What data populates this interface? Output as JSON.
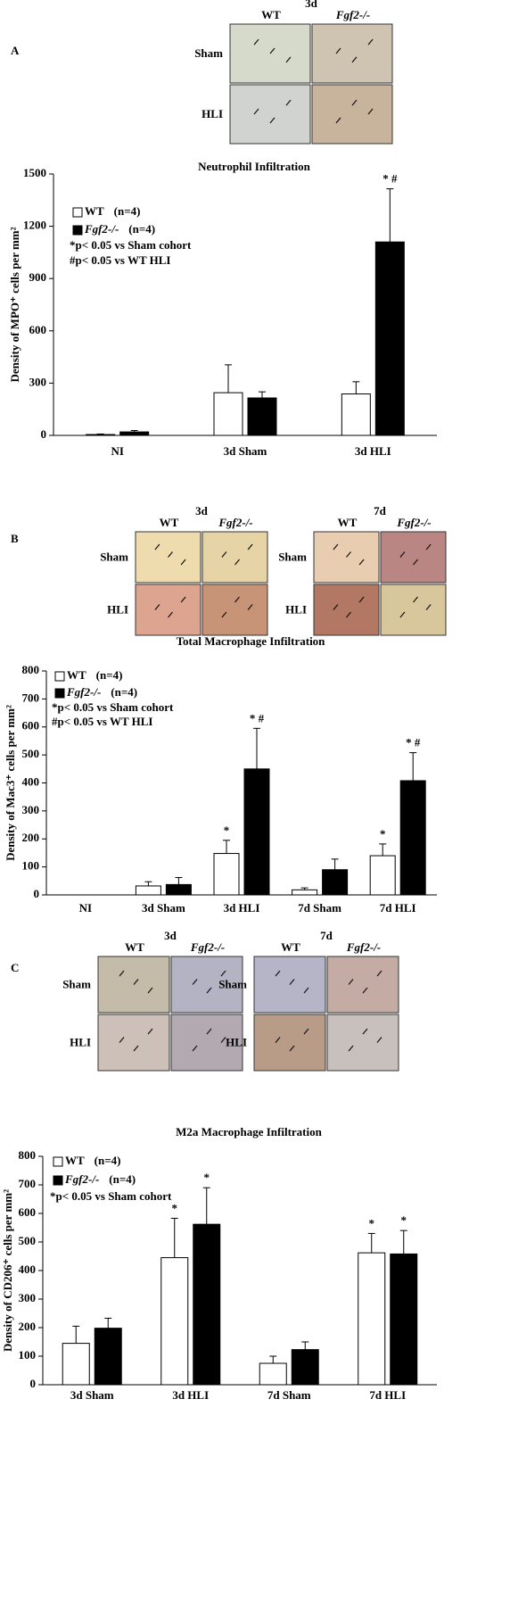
{
  "panels": [
    {
      "letter": "A",
      "blocks": [
        {
          "time": "3d",
          "columns": [
            "WT",
            "Fgf2-/-"
          ],
          "rows": [
            "Sham",
            "HLI"
          ]
        }
      ]
    },
    {
      "letter": "B",
      "blocks": [
        {
          "time": "3d",
          "columns": [
            "WT",
            "Fgf2-/-"
          ],
          "rows": [
            "Sham",
            "HLI"
          ]
        },
        {
          "time": "7d",
          "columns": [
            "WT",
            "Fgf2-/-"
          ],
          "rows": [
            "Sham",
            "HLI"
          ]
        }
      ]
    },
    {
      "letter": "C",
      "blocks": [
        {
          "time": "3d",
          "columns": [
            "WT",
            "Fgf2-/-"
          ],
          "rows": [
            "Sham",
            "HLI"
          ]
        },
        {
          "time": "7d",
          "columns": [
            "WT",
            "Fgf2-/-"
          ],
          "rows": [
            "Sham",
            "HLI"
          ]
        }
      ]
    }
  ],
  "chart_data": [
    {
      "type": "bar",
      "title": "Neutrophil Infiltration",
      "y_label": "Density of MPO⁺ cells per mm²",
      "categories": [
        "NI",
        "3d Sham",
        "3d HLI"
      ],
      "series": [
        {
          "name": "WT",
          "legend_note": "(n=4)",
          "color": "#ffffff",
          "values": [
            5,
            245,
            238
          ],
          "errors": [
            3,
            160,
            70
          ],
          "annotations": [
            null,
            null,
            null
          ]
        },
        {
          "name": "Fgf2-/-",
          "legend_note": "(n=4)",
          "color": "#000000",
          "values": [
            20,
            215,
            1110
          ],
          "errors": [
            8,
            35,
            305
          ],
          "annotations": [
            null,
            null,
            "* #"
          ]
        }
      ],
      "notes": [
        "*p< 0.05 vs Sham cohort",
        "#p< 0.05 vs WT HLI"
      ],
      "ylim": [
        0,
        1500
      ],
      "yticks": [
        0,
        300,
        600,
        900,
        1200,
        1500
      ]
    },
    {
      "type": "bar",
      "title": "Total Macrophage Infiltration",
      "y_label": "Density of Mac3⁺ cells per mm²",
      "categories": [
        "NI",
        "3d Sham",
        "3d HLI",
        "7d Sham",
        "7d HLI"
      ],
      "series": [
        {
          "name": "WT",
          "legend_note": "(n=4)",
          "color": "#ffffff",
          "values": [
            0,
            32,
            148,
            18,
            140
          ],
          "errors": [
            0,
            15,
            47,
            7,
            42
          ],
          "annotations": [
            null,
            null,
            "*",
            null,
            "*"
          ]
        },
        {
          "name": "Fgf2-/-",
          "legend_note": "(n=4)",
          "color": "#000000",
          "values": [
            0,
            37,
            450,
            90,
            408
          ],
          "errors": [
            0,
            25,
            145,
            38,
            100
          ],
          "annotations": [
            null,
            null,
            "* #",
            null,
            "* #"
          ]
        }
      ],
      "notes": [
        "*p< 0.05 vs Sham cohort",
        "#p< 0.05 vs WT HLI"
      ],
      "ylim": [
        0,
        800
      ],
      "yticks": [
        0,
        100,
        200,
        300,
        400,
        500,
        600,
        700,
        800
      ]
    },
    {
      "type": "bar",
      "title": "M2a Macrophage Infiltration",
      "y_label": "Density of CD206⁺ cells per mm²",
      "categories": [
        "3d Sham",
        "3d HLI",
        "7d Sham",
        "7d HLI"
      ],
      "series": [
        {
          "name": "WT",
          "legend_note": "(n=4)",
          "color": "#ffffff",
          "values": [
            145,
            445,
            75,
            462
          ],
          "errors": [
            60,
            138,
            25,
            68
          ],
          "annotations": [
            null,
            "*",
            null,
            "*"
          ]
        },
        {
          "name": "Fgf2-/-",
          "legend_note": "(n=4)",
          "color": "#000000",
          "values": [
            198,
            562,
            123,
            458
          ],
          "errors": [
            35,
            128,
            27,
            82
          ],
          "annotations": [
            null,
            "*",
            null,
            "*"
          ]
        }
      ],
      "notes": [
        "*p< 0.05 vs Sham cohort"
      ],
      "ylim": [
        0,
        800
      ],
      "yticks": [
        0,
        100,
        200,
        300,
        400,
        500,
        600,
        700,
        800
      ]
    }
  ]
}
